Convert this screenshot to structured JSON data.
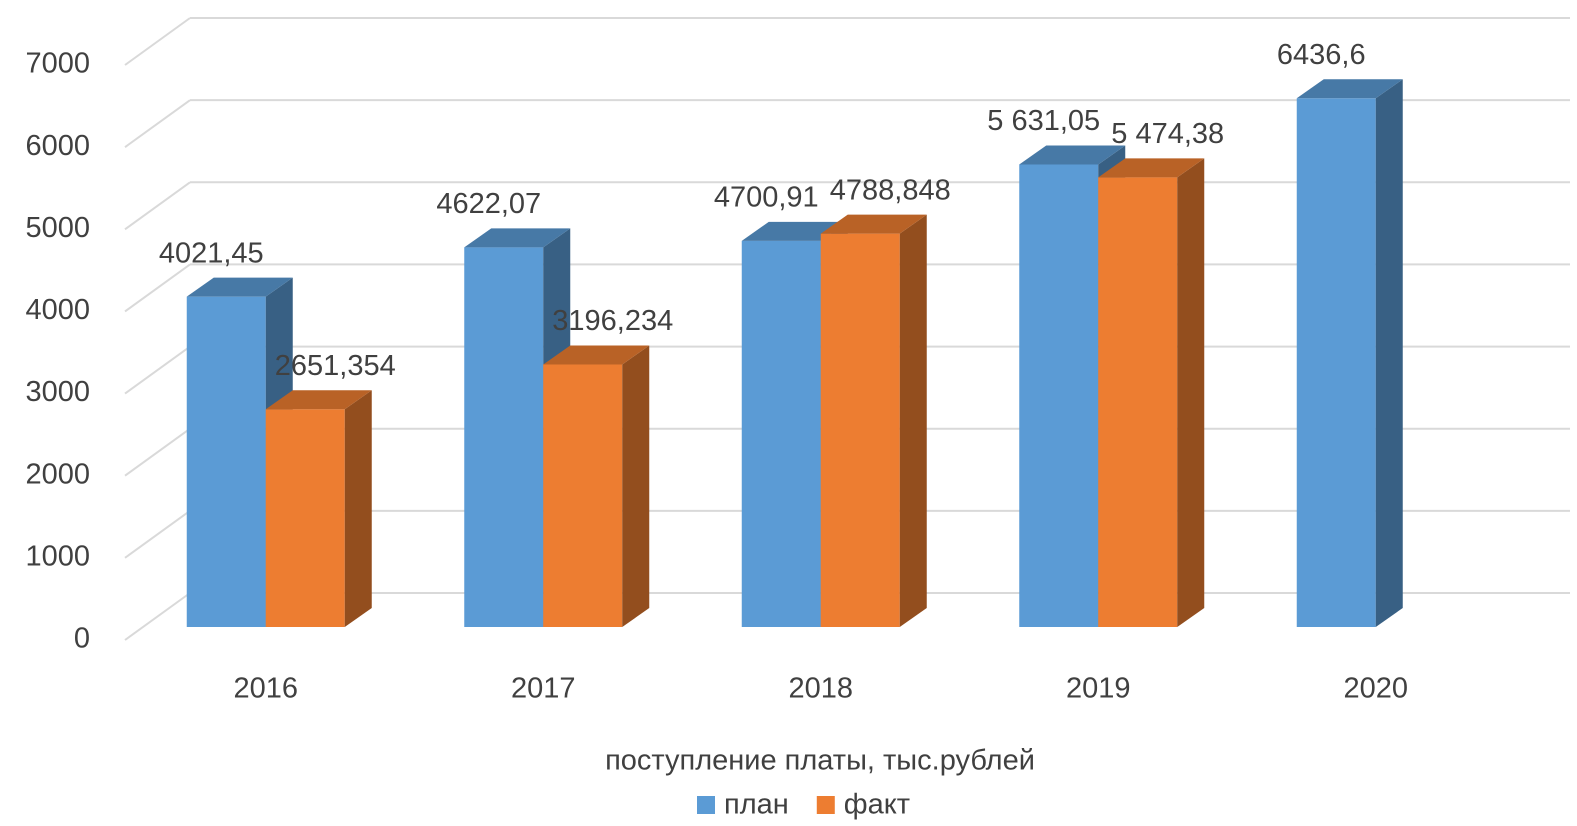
{
  "chart_data": {
    "type": "bar3d",
    "xlabel": "поступление платы, тыс.рублей",
    "categories": [
      "2016",
      "2017",
      "2018",
      "2019",
      "2020"
    ],
    "series": [
      {
        "name": "план",
        "color": "#5b9bd5",
        "values": [
          4021.45,
          4622.07,
          4700.91,
          5631.05,
          6436.6
        ],
        "value_labels": [
          "4021,45",
          "4622,07",
          "4700,91",
          "5 631,05",
          "6436,6"
        ]
      },
      {
        "name": "факт",
        "color": "#ed7d31",
        "values": [
          2651.354,
          3196.234,
          4788.848,
          5474.38,
          null
        ],
        "value_labels": [
          "2651,354",
          "3196,234",
          "4788,848",
          "5 474,38",
          null
        ]
      }
    ],
    "ylim": [
      0,
      7000
    ],
    "yticks": [
      0,
      1000,
      2000,
      3000,
      4000,
      5000,
      6000,
      7000
    ],
    "grid": true,
    "legend": "bottom"
  }
}
